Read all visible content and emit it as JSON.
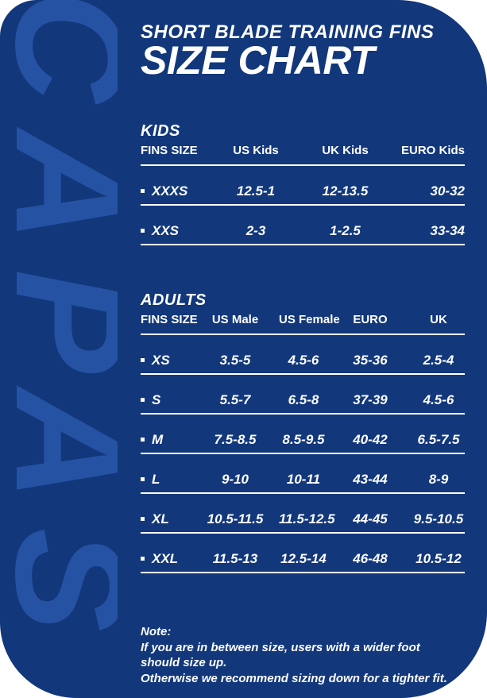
{
  "card": {
    "watermark_text": "CAPAS"
  },
  "colors": {
    "card_background": "#12377B",
    "watermark_blue": "#2652A3",
    "text": "#FFFFFF",
    "rule_lines": "#FFFFFF"
  },
  "header": {
    "kicker": "SHORT BLADE TRAINING FINS",
    "title": "SIZE CHART"
  },
  "tables": {
    "kids": {
      "section_title": "KIDS",
      "columns": [
        "FINS SIZE",
        "US Kids",
        "UK Kids",
        "EURO Kids"
      ],
      "rows": [
        {
          "cells": [
            "XXXS",
            "12.5-1",
            "12-13.5",
            "30-32"
          ]
        },
        {
          "cells": [
            "XXS",
            "2-3",
            "1-2.5",
            "33-34"
          ]
        }
      ]
    },
    "adults": {
      "section_title": "ADULTS",
      "columns": [
        "FINS SIZE",
        "US Male",
        "US Female",
        "EURO",
        "UK"
      ],
      "rows": [
        {
          "cells": [
            "XS",
            "3.5-5",
            "4.5-6",
            "35-36",
            "2.5-4"
          ]
        },
        {
          "cells": [
            "S",
            "5.5-7",
            "6.5-8",
            "37-39",
            "4.5-6"
          ]
        },
        {
          "cells": [
            "M",
            "7.5-8.5",
            "8.5-9.5",
            "40-42",
            "6.5-7.5"
          ]
        },
        {
          "cells": [
            "L",
            "9-10",
            "10-11",
            "43-44",
            "8-9"
          ]
        },
        {
          "cells": [
            "XL",
            "10.5-11.5",
            "11.5-12.5",
            "44-45",
            "9.5-10.5"
          ]
        },
        {
          "cells": [
            "XXL",
            "11.5-13",
            "12.5-14",
            "46-48",
            "10.5-12"
          ]
        }
      ]
    }
  },
  "note": {
    "label": "Note:",
    "lines": [
      "If you are in between size, users with a wider foot",
      "should size up.",
      "Otherwise we recommend sizing down for a tighter fit."
    ]
  }
}
